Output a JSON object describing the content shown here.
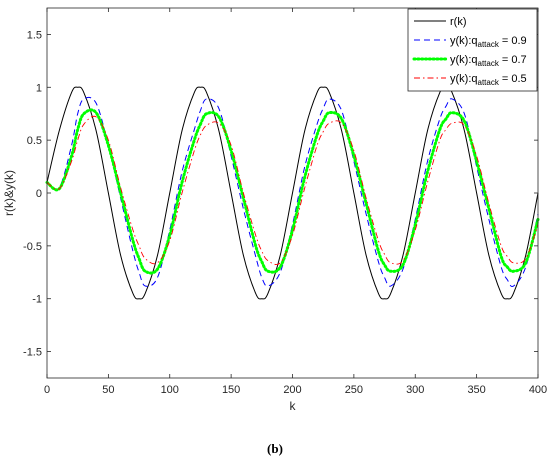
{
  "caption": "(b)",
  "chart_data": {
    "type": "line",
    "xlabel": "k",
    "ylabel": "r(k)&y(k)",
    "xlim": [
      0,
      400
    ],
    "ylim": [
      -1.75,
      1.75
    ],
    "xticks": [
      0,
      50,
      100,
      150,
      200,
      250,
      300,
      350,
      400
    ],
    "yticks": [
      -1.5,
      -1,
      -0.5,
      0,
      0.5,
      1,
      1.5
    ],
    "xtick_labels": [
      "0",
      "50",
      "100",
      "150",
      "200",
      "250",
      "300",
      "350",
      "400"
    ],
    "ytick_labels": [
      "-1.5",
      "-1",
      "-0.5",
      "0",
      "0.5",
      "1",
      "1.5"
    ],
    "grid": false,
    "legend_position": "top-right",
    "x": [
      0,
      10,
      20,
      25,
      30,
      40,
      50,
      60,
      70,
      75,
      80,
      90,
      100,
      110,
      120,
      125,
      130,
      140,
      150,
      160,
      170,
      175,
      180,
      190,
      200,
      210,
      220,
      225,
      230,
      240,
      250,
      260,
      270,
      275,
      280,
      290,
      300,
      310,
      320,
      325,
      330,
      340,
      350,
      360,
      370,
      375,
      380,
      390,
      400
    ],
    "series": [
      {
        "name": "r(k)",
        "legend_main": "r(k)",
        "legend_sub": "",
        "legend_tail": "",
        "color": "#000000",
        "style": "solid",
        "values": [
          0.1,
          0.59,
          0.95,
          1.0,
          0.95,
          0.59,
          0.0,
          -0.59,
          -0.95,
          -1.0,
          -0.95,
          -0.59,
          0.0,
          0.59,
          0.95,
          1.0,
          0.95,
          0.59,
          0.0,
          -0.59,
          -0.95,
          -1.0,
          -0.95,
          -0.59,
          0.0,
          0.59,
          0.95,
          1.0,
          0.95,
          0.59,
          0.0,
          -0.59,
          -0.95,
          -1.0,
          -0.95,
          -0.59,
          0.0,
          0.59,
          0.95,
          1.0,
          0.95,
          0.59,
          0.0,
          -0.59,
          -0.95,
          -1.0,
          -0.95,
          -0.59,
          0.0
        ]
      },
      {
        "name": "y(k):q_attack = 0.9",
        "legend_main": "y(k):q",
        "legend_sub": "attack",
        "legend_tail": " = 0.9",
        "color": "#0000ff",
        "style": "dashed",
        "values": [
          0.1,
          0.05,
          0.45,
          0.75,
          0.89,
          0.85,
          0.45,
          -0.05,
          -0.55,
          -0.75,
          -0.88,
          -0.8,
          -0.35,
          0.2,
          0.6,
          0.78,
          0.89,
          0.8,
          0.35,
          -0.15,
          -0.6,
          -0.8,
          -0.88,
          -0.75,
          -0.3,
          0.25,
          0.65,
          0.8,
          0.89,
          0.78,
          0.3,
          -0.2,
          -0.65,
          -0.8,
          -0.88,
          -0.72,
          -0.25,
          0.3,
          0.7,
          0.82,
          0.89,
          0.75,
          0.25,
          -0.25,
          -0.7,
          -0.82,
          -0.88,
          -0.7,
          -0.2
        ]
      },
      {
        "name": "y(k):q_attack = 0.7",
        "legend_main": "y(k):q",
        "legend_sub": "attack",
        "legend_tail": " = 0.7",
        "color": "#00ff00",
        "style": "dotted",
        "values": [
          0.1,
          0.04,
          0.35,
          0.6,
          0.75,
          0.76,
          0.45,
          0.0,
          -0.45,
          -0.62,
          -0.74,
          -0.72,
          -0.4,
          0.1,
          0.5,
          0.65,
          0.75,
          0.72,
          0.4,
          -0.05,
          -0.5,
          -0.65,
          -0.74,
          -0.7,
          -0.35,
          0.15,
          0.55,
          0.68,
          0.76,
          0.7,
          0.35,
          -0.1,
          -0.55,
          -0.68,
          -0.74,
          -0.68,
          -0.3,
          0.2,
          0.6,
          0.7,
          0.76,
          0.68,
          0.3,
          -0.15,
          -0.6,
          -0.7,
          -0.74,
          -0.66,
          -0.25
        ]
      },
      {
        "name": "y(k):q_attack = 0.5",
        "legend_main": "y(k):q",
        "legend_sub": "attack",
        "legend_tail": " = 0.5",
        "color": "#ff0000",
        "style": "dashdot",
        "values": [
          0.1,
          0.04,
          0.3,
          0.5,
          0.65,
          0.72,
          0.5,
          0.05,
          -0.35,
          -0.5,
          -0.62,
          -0.66,
          -0.45,
          0.0,
          0.4,
          0.55,
          0.64,
          0.66,
          0.45,
          0.0,
          -0.4,
          -0.55,
          -0.64,
          -0.66,
          -0.4,
          0.05,
          0.45,
          0.58,
          0.66,
          0.66,
          0.4,
          -0.05,
          -0.45,
          -0.58,
          -0.66,
          -0.64,
          -0.35,
          0.1,
          0.5,
          0.6,
          0.66,
          0.64,
          0.35,
          -0.1,
          -0.5,
          -0.6,
          -0.66,
          -0.62,
          -0.3
        ]
      }
    ]
  }
}
